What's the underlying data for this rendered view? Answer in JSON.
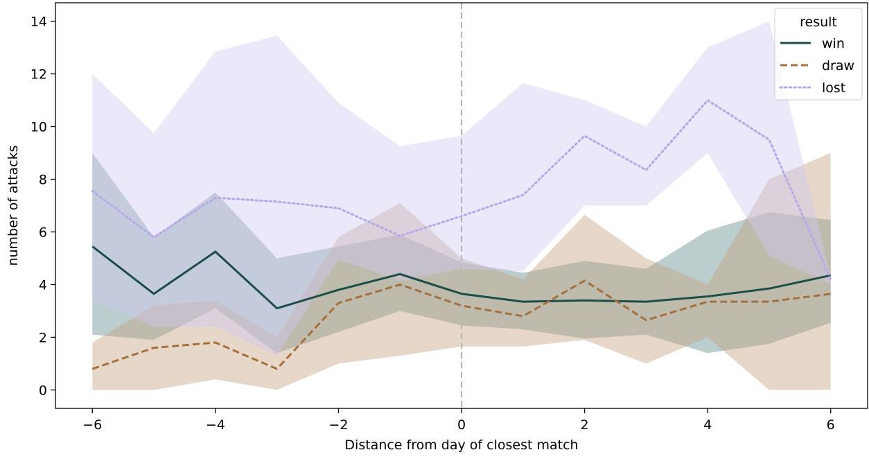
{
  "chart_data": {
    "type": "line",
    "title": "",
    "xlabel": "Distance from day of closest match",
    "ylabel": "number of attacks",
    "xlim": [
      -6.6,
      6.6
    ],
    "ylim": [
      -0.7,
      14.7
    ],
    "xticks": [
      -6,
      -4,
      -2,
      0,
      2,
      4,
      6
    ],
    "xtick_labels": [
      "−6",
      "−4",
      "−2",
      "0",
      "2",
      "4",
      "6"
    ],
    "yticks": [
      0,
      2,
      4,
      6,
      8,
      10,
      12,
      14
    ],
    "ytick_labels": [
      "0",
      "2",
      "4",
      "6",
      "8",
      "10",
      "12",
      "14"
    ],
    "reference_line_x": 0,
    "grid": false,
    "legend": {
      "title": "result",
      "placement": "top-right"
    },
    "x": [
      -6,
      -5,
      -4,
      -3,
      -2,
      -1,
      0,
      1,
      2,
      3,
      4,
      5,
      6
    ],
    "series": [
      {
        "name": "win",
        "color": "#1d4d47",
        "dash": "solid",
        "values": [
          5.45,
          3.65,
          5.25,
          3.1,
          3.8,
          4.4,
          3.65,
          3.35,
          3.4,
          3.35,
          3.55,
          3.85,
          4.35
        ],
        "ci_low": [
          2.1,
          1.9,
          3.1,
          1.4,
          2.2,
          3.0,
          2.45,
          2.3,
          1.95,
          2.1,
          1.4,
          1.75,
          2.55
        ],
        "ci_high": [
          9.0,
          5.8,
          7.5,
          5.0,
          5.45,
          5.9,
          4.85,
          4.45,
          4.9,
          4.6,
          6.05,
          6.75,
          6.45
        ],
        "band_color": "#5d8a87"
      },
      {
        "name": "draw",
        "color": "#a3703e",
        "dash": "dashed",
        "values": [
          0.8,
          1.6,
          1.8,
          0.8,
          3.3,
          4.0,
          3.2,
          2.8,
          4.15,
          2.65,
          3.35,
          3.35,
          3.65
        ],
        "ci_low": [
          0.0,
          0.0,
          0.4,
          0.0,
          1.0,
          1.3,
          1.65,
          1.65,
          1.9,
          1.0,
          2.0,
          0.0,
          0.0
        ],
        "ci_high": [
          1.8,
          3.2,
          3.4,
          2.0,
          5.8,
          7.1,
          5.0,
          4.2,
          6.65,
          5.0,
          4.0,
          8.0,
          9.0
        ],
        "band_color": "#c49f7e"
      },
      {
        "name": "lost",
        "color": "#b6a8e8",
        "dash": "dotted",
        "values": [
          7.55,
          5.8,
          7.3,
          7.15,
          6.9,
          5.85,
          6.6,
          7.4,
          9.65,
          8.35,
          11.0,
          9.5,
          4.2
        ],
        "ci_low": [
          3.4,
          2.4,
          2.4,
          1.3,
          4.95,
          4.15,
          4.6,
          4.5,
          7.0,
          7.0,
          9.0,
          5.1,
          4.0
        ],
        "ci_high": [
          12.0,
          9.75,
          12.85,
          13.45,
          10.9,
          9.25,
          9.65,
          11.65,
          11.0,
          10.0,
          13.0,
          14.0,
          4.3
        ],
        "band_color": "#cfc8f2"
      }
    ]
  }
}
